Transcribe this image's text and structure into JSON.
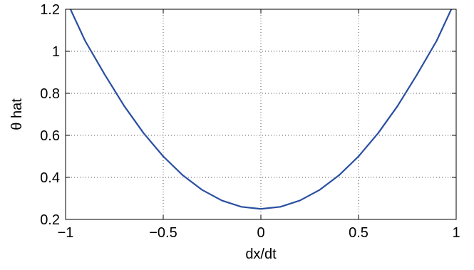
{
  "chart_data": {
    "type": "line",
    "title": "",
    "xlabel": "dx/dt",
    "ylabel": "θ hat",
    "xlim": [
      -1,
      1
    ],
    "ylim": [
      0.2,
      1.2
    ],
    "xticks": [
      -1,
      -0.5,
      0,
      0.5,
      1
    ],
    "xtick_labels": [
      "−1",
      "−0.5",
      "0",
      "0.5",
      "1"
    ],
    "yticks": [
      0.2,
      0.4,
      0.6,
      0.8,
      1,
      1.2
    ],
    "ytick_labels": [
      "0.2",
      "0.4",
      "0.6",
      "0.8",
      "1",
      "1.2"
    ],
    "grid": true,
    "legend": "none",
    "line_color": "#2a4fa0",
    "series": [
      {
        "x": [
          -1.0,
          -0.9,
          -0.8,
          -0.7,
          -0.6,
          -0.5,
          -0.4,
          -0.3,
          -0.2,
          -0.1,
          0.0,
          0.1,
          0.2,
          0.3,
          0.4,
          0.5,
          0.6,
          0.7,
          0.8,
          0.9,
          1.0
        ],
        "y": [
          1.25,
          1.05,
          0.89,
          0.74,
          0.61,
          0.5,
          0.41,
          0.34,
          0.29,
          0.26,
          0.25,
          0.26,
          0.29,
          0.34,
          0.41,
          0.5,
          0.61,
          0.74,
          0.89,
          1.05,
          1.25
        ]
      }
    ]
  }
}
